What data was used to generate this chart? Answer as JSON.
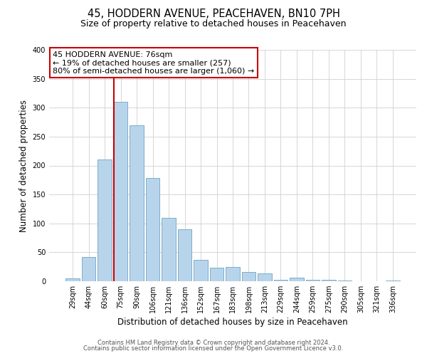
{
  "title": "45, HODDERN AVENUE, PEACEHAVEN, BN10 7PH",
  "subtitle": "Size of property relative to detached houses in Peacehaven",
  "xlabel": "Distribution of detached houses by size in Peacehaven",
  "ylabel": "Number of detached properties",
  "bar_labels": [
    "29sqm",
    "44sqm",
    "60sqm",
    "75sqm",
    "90sqm",
    "106sqm",
    "121sqm",
    "136sqm",
    "152sqm",
    "167sqm",
    "183sqm",
    "198sqm",
    "213sqm",
    "229sqm",
    "244sqm",
    "259sqm",
    "275sqm",
    "290sqm",
    "305sqm",
    "321sqm",
    "336sqm"
  ],
  "bar_values": [
    5,
    42,
    210,
    310,
    270,
    178,
    110,
    90,
    37,
    24,
    25,
    16,
    14,
    3,
    6,
    3,
    2,
    1,
    0,
    0,
    1
  ],
  "bar_color": "#b8d4eb",
  "bar_edge_color": "#7aaecb",
  "vline_index": 3,
  "vline_color": "#cc0000",
  "annotation_title": "45 HODDERN AVENUE: 76sqm",
  "annotation_line1": "← 19% of detached houses are smaller (257)",
  "annotation_line2": "80% of semi-detached houses are larger (1,060) →",
  "ylim": [
    0,
    400
  ],
  "yticks": [
    0,
    50,
    100,
    150,
    200,
    250,
    300,
    350,
    400
  ],
  "footer_line1": "Contains HM Land Registry data © Crown copyright and database right 2024.",
  "footer_line2": "Contains public sector information licensed under the Open Government Licence v3.0.",
  "background_color": "#ffffff",
  "grid_color": "#d0d0d0",
  "title_fontsize": 10.5,
  "subtitle_fontsize": 9,
  "tick_fontsize": 7,
  "ylabel_fontsize": 8.5,
  "xlabel_fontsize": 8.5,
  "annot_fontsize": 8,
  "footer_fontsize": 6
}
